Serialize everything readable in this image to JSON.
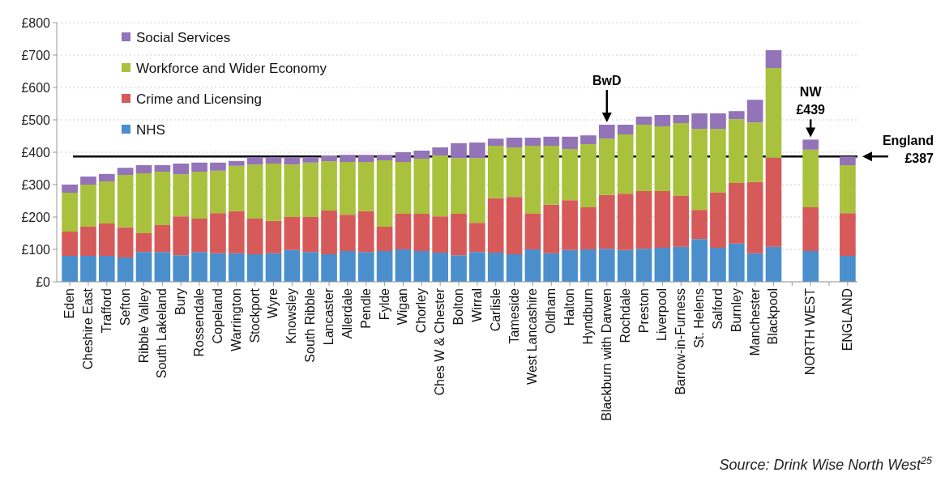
{
  "chart_data": {
    "type": "bar",
    "stacked": true,
    "categories": [
      "Eden",
      "Cheshire East",
      "Trafford",
      "Sefton",
      "Ribble Valley",
      "South Lakeland",
      "Bury",
      "Rossendale",
      "Copeland",
      "Warrington",
      "Stockport",
      "Wyre",
      "Knowsley",
      "South Ribble",
      "Lancaster",
      "Allerdale",
      "Pendle",
      "Fylde",
      "Wigan",
      "Chorley",
      "Ches W & Chester",
      "Bolton",
      "Wirral",
      "Carlisle",
      "Tameside",
      "West Lancashire",
      "Oldham",
      "Halton",
      "Hyndburn",
      "Blackburn with Darwen",
      "Rochdale",
      "Preston",
      "Liverpool",
      "Barrow-in-Furness",
      "St. Helens",
      "Salford",
      "Burnley",
      "Manchester",
      "Blackpool",
      null,
      "NORTH WEST",
      null,
      "ENGLAND"
    ],
    "series": [
      {
        "name": "NHS",
        "color": "#4a8fcc",
        "values": [
          80,
          80,
          80,
          75,
          92,
          92,
          82,
          92,
          88,
          88,
          85,
          88,
          98,
          92,
          85,
          95,
          92,
          95,
          100,
          95,
          90,
          82,
          92,
          90,
          85,
          100,
          88,
          98,
          100,
          102,
          98,
          102,
          105,
          108,
          132,
          105,
          118,
          88,
          108,
          null,
          95,
          null,
          80
        ]
      },
      {
        "name": "Crime and Licensing",
        "color": "#d65a5a",
        "values": [
          75,
          90,
          100,
          93,
          58,
          83,
          120,
          103,
          124,
          130,
          110,
          100,
          102,
          108,
          135,
          112,
          126,
          75,
          110,
          115,
          112,
          128,
          90,
          168,
          177,
          110,
          150,
          154,
          130,
          166,
          174,
          178,
          175,
          157,
          90,
          170,
          187,
          220,
          275,
          null,
          135,
          null,
          132
        ]
      },
      {
        "name": "Workforce and Wider Economy",
        "color": "#a9c13c",
        "values": [
          120,
          130,
          130,
          162,
          185,
          165,
          130,
          145,
          131,
          140,
          167,
          177,
          162,
          168,
          152,
          163,
          152,
          205,
          160,
          170,
          188,
          172,
          200,
          162,
          153,
          210,
          182,
          158,
          195,
          174,
          183,
          205,
          200,
          225,
          250,
          197,
          197,
          184,
          277,
          null,
          178,
          null,
          148
        ]
      },
      {
        "name": "Social Services",
        "color": "#9474b8",
        "values": [
          25,
          25,
          23,
          22,
          25,
          20,
          33,
          28,
          25,
          15,
          23,
          20,
          23,
          17,
          18,
          22,
          22,
          17,
          30,
          25,
          25,
          46,
          48,
          22,
          30,
          25,
          28,
          38,
          27,
          43,
          30,
          25,
          35,
          25,
          48,
          48,
          25,
          70,
          55,
          null,
          31,
          null,
          27
        ]
      }
    ],
    "ylim": [
      0,
      800
    ],
    "yticks": [
      {
        "value": 0,
        "label": "£0"
      },
      {
        "value": 100,
        "label": "£100"
      },
      {
        "value": 200,
        "label": "£200"
      },
      {
        "value": 300,
        "label": "£300"
      },
      {
        "value": 400,
        "label": "£400"
      },
      {
        "value": 500,
        "label": "£500"
      },
      {
        "value": 600,
        "label": "£600"
      },
      {
        "value": 700,
        "label": "£700"
      },
      {
        "value": 800,
        "label": "£800"
      }
    ],
    "grid": "y",
    "legend": "top left",
    "ref_lines": [
      {
        "axis": "y",
        "value": 387,
        "label": "England £387",
        "color": "#000000"
      }
    ],
    "annotations": [
      {
        "text": "BwD",
        "x": "Blackburn with Darwen",
        "y": 485
      },
      {
        "text": "NW £439",
        "x": "NORTH WEST",
        "y": 439
      },
      "Source: Drink Wise North West$^{25}$"
    ]
  }
}
